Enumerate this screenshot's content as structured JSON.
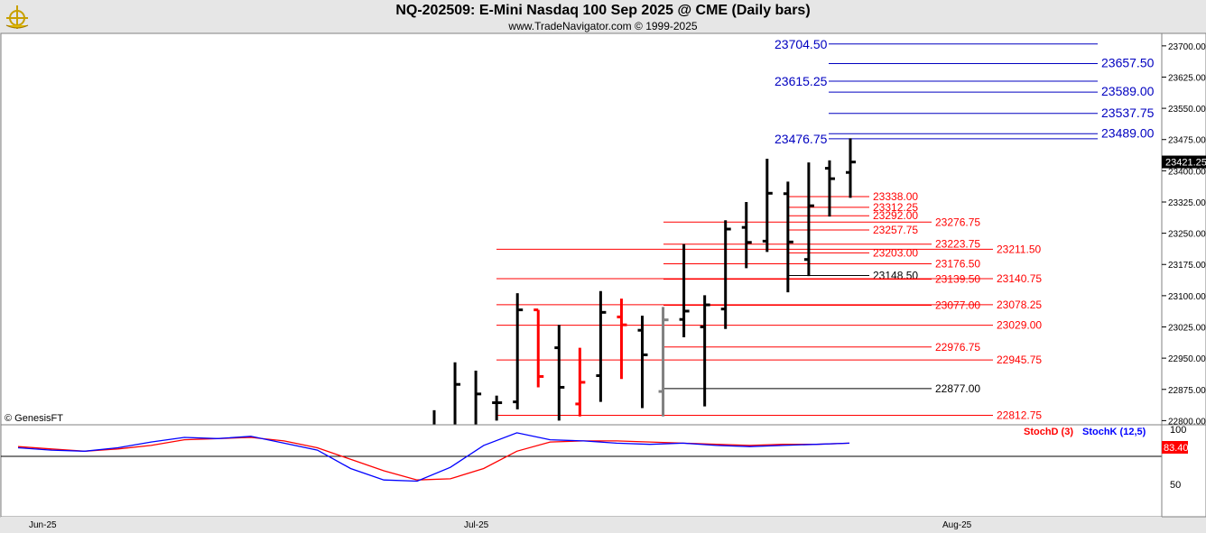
{
  "header": {
    "title": "NQ-202509:  E-Mini Nasdaq 100 Sep 2025 @ CME  (Daily bars)",
    "subtitle": "www.TradeNavigator.com © 1999-2025",
    "logo_icon": "ship-wheel-logo"
  },
  "watermark": "© GenesisFT",
  "chart_data": [
    {
      "type": "ohlc",
      "name": "price-panel",
      "ylim": [
        22790,
        23730
      ],
      "y_ticks": [
        "22800.00",
        "22875.00",
        "22950.00",
        "23025.00",
        "23100.00",
        "23175.00",
        "23250.00",
        "23325.00",
        "23400.00",
        "23475.00",
        "23550.00",
        "23625.00",
        "23700.00"
      ],
      "last_price": "23421.25",
      "x_ticks": [
        "Jun-25",
        "Jul-25",
        "Aug-25"
      ],
      "bars": [
        {
          "color": "#000000",
          "open": null,
          "high": 22825,
          "low": 22790,
          "close": null
        },
        {
          "color": "#000000",
          "open": null,
          "high": 22940,
          "low": 22790,
          "close": 22887
        },
        {
          "color": "#000000",
          "open": null,
          "high": 22920,
          "low": 22790,
          "close": 22864
        },
        {
          "color": "#000000",
          "open": 22843,
          "high": 22860,
          "low": 22800,
          "close": 22843
        },
        {
          "color": "#000000",
          "open": 22845,
          "high": 23106,
          "low": 22827,
          "close": 23066
        },
        {
          "color": "#ff0000",
          "open": 23066,
          "high": 23066,
          "low": 22880,
          "close": 22906
        },
        {
          "color": "#000000",
          "open": 22975,
          "high": 23030,
          "low": 22800,
          "close": 22880
        },
        {
          "color": "#ff0000",
          "open": 22840,
          "high": 22975,
          "low": 22810,
          "close": 22892
        },
        {
          "color": "#000000",
          "open": 22908,
          "high": 23111,
          "low": 22845,
          "close": 23060
        },
        {
          "color": "#ff0000",
          "open": 23049,
          "high": 23093,
          "low": 22900,
          "close": 23030
        },
        {
          "color": "#000000",
          "open": 23017,
          "high": 23052,
          "low": 22830,
          "close": 22958
        },
        {
          "color": "#808080",
          "open": 22870,
          "high": 23073,
          "low": 22810,
          "close": 23042
        },
        {
          "color": "#000000",
          "open": 23043,
          "high": 23224,
          "low": 23000,
          "close": 23063
        },
        {
          "color": "#000000",
          "open": 23025,
          "high": 23101,
          "low": 22834,
          "close": 23078
        },
        {
          "color": "#000000",
          "open": 23068,
          "high": 23281,
          "low": 23020,
          "close": 23260
        },
        {
          "color": "#000000",
          "open": 23264,
          "high": 23325,
          "low": 23166,
          "close": 23228
        },
        {
          "color": "#000000",
          "open": 23231,
          "high": 23429,
          "low": 23205,
          "close": 23346
        },
        {
          "color": "#000000",
          "open": 23345,
          "high": 23374,
          "low": 23108,
          "close": 23229
        },
        {
          "color": "#000000",
          "open": 23187,
          "high": 23420,
          "low": 23147,
          "close": 23316
        },
        {
          "color": "#000000",
          "open": 23406,
          "high": 23425,
          "low": 23290,
          "close": 23381
        },
        {
          "color": "#000000",
          "open": 23396,
          "high": 23478,
          "low": 23335,
          "close": 23421
        }
      ],
      "levels": [
        {
          "label": "23704.50",
          "value": 23704.5,
          "color": "#0000c0",
          "side": "left",
          "from": 0.0,
          "to": 0.0
        },
        {
          "label": "23657.50",
          "value": 23657.5,
          "color": "#0000c0",
          "side": "right"
        },
        {
          "label": "23615.25",
          "value": 23615.25,
          "color": "#0000c0",
          "side": "left"
        },
        {
          "label": "23589.00",
          "value": 23589.0,
          "color": "#0000c0",
          "side": "right"
        },
        {
          "label": "23537.75",
          "value": 23537.75,
          "color": "#0000c0",
          "side": "right"
        },
        {
          "label": "23476.75",
          "value": 23476.75,
          "color": "#0000c0",
          "side": "left"
        },
        {
          "label": "23489.00",
          "value": 23489.0,
          "color": "#0000c0",
          "side": "right"
        },
        {
          "label": "23338.00",
          "value": 23338.0,
          "color": "#ff0000",
          "side": "small"
        },
        {
          "label": "23312.25",
          "value": 23312.25,
          "color": "#ff0000",
          "side": "small"
        },
        {
          "label": "23292.00",
          "value": 23292.0,
          "color": "#ff0000",
          "side": "small"
        },
        {
          "label": "23276.75",
          "value": 23276.75,
          "color": "#ff0000",
          "side": "mid"
        },
        {
          "label": "23257.75",
          "value": 23257.75,
          "color": "#ff0000",
          "side": "small"
        },
        {
          "label": "23223.75",
          "value": 23223.75,
          "color": "#ff0000",
          "side": "mid"
        },
        {
          "label": "23211.50",
          "value": 23211.5,
          "color": "#ff0000",
          "side": "far"
        },
        {
          "label": "23203.00",
          "value": 23203.0,
          "color": "#ff0000",
          "side": "small"
        },
        {
          "label": "23176.50",
          "value": 23176.5,
          "color": "#ff0000",
          "side": "mid"
        },
        {
          "label": "23148.50",
          "value": 23148.5,
          "color": "#000000",
          "side": "small"
        },
        {
          "label": "23139.50",
          "value": 23139.5,
          "color": "#ff0000",
          "side": "mid"
        },
        {
          "label": "23140.75",
          "value": 23140.75,
          "color": "#ff0000",
          "side": "far"
        },
        {
          "label": "23077.00",
          "value": 23077.0,
          "color": "#ff0000",
          "side": "mid"
        },
        {
          "label": "23078.25",
          "value": 23078.25,
          "color": "#ff0000",
          "side": "far"
        },
        {
          "label": "23029.00",
          "value": 23029.0,
          "color": "#ff0000",
          "side": "far"
        },
        {
          "label": "22976.75",
          "value": 22976.75,
          "color": "#ff0000",
          "side": "mid"
        },
        {
          "label": "22945.75",
          "value": 22945.75,
          "color": "#ff0000",
          "side": "far"
        },
        {
          "label": "22877.00",
          "value": 22877.0,
          "color": "#000000",
          "side": "mid"
        },
        {
          "label": "22812.75",
          "value": 22812.75,
          "color": "#ff0000",
          "side": "far"
        }
      ]
    },
    {
      "type": "line",
      "name": "stochastic-panel",
      "ylim": [
        20,
        100
      ],
      "y_ticks": [
        "100",
        "50"
      ],
      "last_value": "83.40",
      "series": [
        {
          "name": "StochD (3)",
          "color": "#ff0000",
          "values": [
            81,
            79,
            77,
            79,
            82,
            87,
            88,
            89,
            86,
            80,
            70,
            60,
            52,
            53,
            62,
            77,
            85,
            86,
            86,
            85,
            84,
            83,
            82,
            83,
            83,
            84
          ]
        },
        {
          "name": "StochK (12,5)",
          "color": "#0000ff",
          "values": [
            80,
            78,
            77,
            80,
            85,
            89,
            88,
            90,
            84,
            78,
            62,
            52,
            51,
            63,
            82,
            93,
            87,
            86,
            84,
            83,
            84,
            82,
            81,
            82,
            83,
            84
          ]
        }
      ]
    }
  ]
}
